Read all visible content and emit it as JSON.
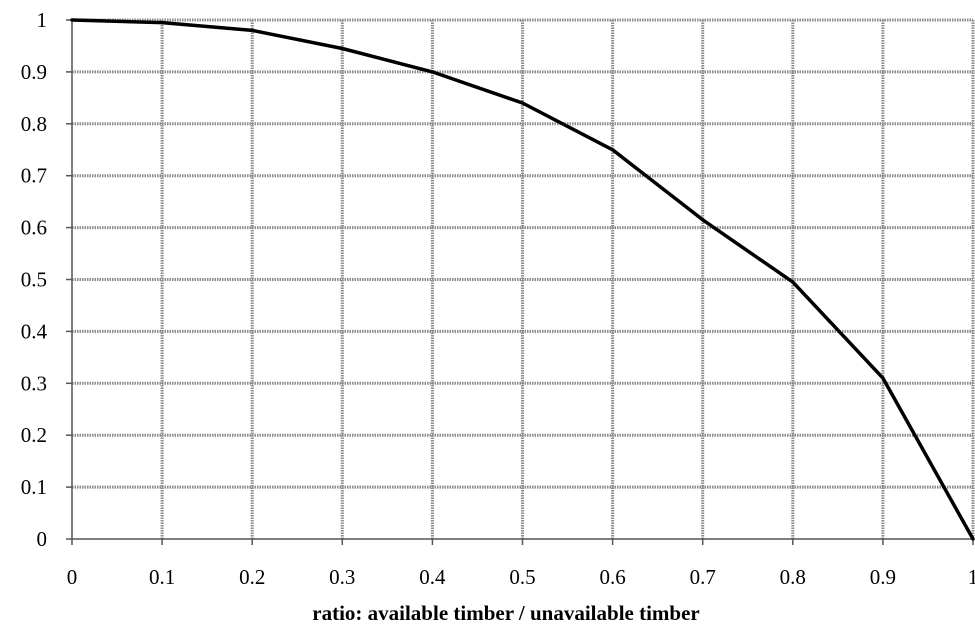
{
  "chart_data": {
    "type": "line",
    "title": "",
    "xlabel": "ratio: available timber / unavailable timber",
    "ylabel": "",
    "xlim": [
      0,
      1
    ],
    "ylim": [
      0,
      1
    ],
    "grid": true,
    "x_tick_labels": [
      "0",
      "0.1",
      "0.2",
      "0.3",
      "0.4",
      "0.5",
      "0.6",
      "0.7",
      "0.8",
      "0.9",
      "1"
    ],
    "y_tick_labels": [
      "0",
      "0.1",
      "0.2",
      "0.3",
      "0.4",
      "0.5",
      "0.6",
      "0.7",
      "0.8",
      "0.9",
      "1"
    ],
    "x_ticks": [
      0,
      0.1,
      0.2,
      0.3,
      0.4,
      0.5,
      0.6,
      0.7,
      0.8,
      0.9,
      1
    ],
    "y_ticks": [
      0,
      0.1,
      0.2,
      0.3,
      0.4,
      0.5,
      0.6,
      0.7,
      0.8,
      0.9,
      1
    ],
    "series": [
      {
        "x": [
          0,
          0.1,
          0.2,
          0.3,
          0.4,
          0.5,
          0.6,
          0.7,
          0.8,
          0.9,
          1
        ],
        "values": [
          1.0,
          0.995,
          0.98,
          0.945,
          0.9,
          0.84,
          0.75,
          0.615,
          0.495,
          0.31,
          0.0
        ]
      }
    ],
    "colors": {
      "line": "#000000",
      "grid": "#8c8c8c"
    }
  }
}
